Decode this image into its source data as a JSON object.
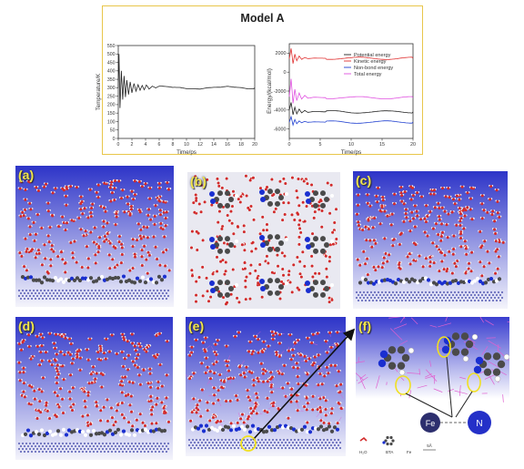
{
  "figure": {
    "title": "Model A",
    "panel_labels": [
      "(a)",
      "(b)",
      "(c)",
      "(d)",
      "(e)",
      "(f)"
    ],
    "legend_items": {
      "h2o": "H₂O",
      "bta": "BTA",
      "fe": "Fe",
      "scale": "5Å"
    },
    "atoms": {
      "fe": "Fe",
      "n": "N"
    },
    "colors": {
      "frame": "#e8c64a",
      "panel_bg_top": "#2d34c8",
      "panel_bg_bottom": "#f4f4fb",
      "water_o": "#d22a2a",
      "water_h": "#f3f3f3",
      "carbon": "#4a4a4a",
      "nitrogen": "#1a2fd0",
      "fe_atom": "#6a6fbd",
      "hbond": "#e060d0",
      "highlight": "#f0e020"
    }
  },
  "chart_data": [
    {
      "type": "line",
      "title": "",
      "xlabel": "Time/ps",
      "ylabel": "Temperature/K",
      "xlim": [
        0,
        20
      ],
      "ylim": [
        0,
        550
      ],
      "xticks": [
        0,
        2,
        4,
        6,
        8,
        10,
        12,
        14,
        16,
        18,
        20
      ],
      "yticks": [
        0,
        50,
        100,
        150,
        200,
        250,
        300,
        350,
        400,
        450,
        500,
        550
      ],
      "series": [
        {
          "color": "#222222",
          "x": [
            0,
            0.1,
            0.25,
            0.45,
            0.65,
            0.85,
            1.05,
            1.25,
            1.5,
            1.75,
            2.0,
            2.3,
            2.6,
            2.9,
            3.2,
            3.5,
            3.8,
            4.1,
            4.5,
            5.0,
            5.5,
            6.0,
            7,
            8,
            9,
            10,
            11,
            12,
            13,
            14,
            15,
            16,
            17,
            18,
            19,
            20
          ],
          "y": [
            300,
            500,
            180,
            400,
            230,
            370,
            245,
            345,
            260,
            335,
            270,
            325,
            280,
            318,
            285,
            314,
            288,
            311,
            292,
            307,
            295,
            304,
            301,
            298,
            302,
            299,
            301,
            298,
            302,
            300,
            297,
            302,
            299,
            301,
            298,
            300
          ]
        }
      ]
    },
    {
      "type": "line",
      "title": "",
      "xlabel": "Time/ps",
      "ylabel": "Energy/(kcal/mol)",
      "xlim": [
        0,
        20
      ],
      "ylim": [
        -7000,
        3000
      ],
      "xticks": [
        0,
        5,
        10,
        15,
        20
      ],
      "yticks": [
        -6000,
        -4000,
        -2000,
        0,
        2000
      ],
      "legend_position": "center-right",
      "series": [
        {
          "name": "Potential energy",
          "color": "#222222",
          "x": [
            0,
            0.3,
            0.6,
            0.9,
            1.2,
            1.6,
            2.0,
            2.5,
            3.0,
            4,
            6,
            8,
            10,
            12,
            14,
            16,
            18,
            20
          ],
          "y": [
            -4000,
            -3200,
            -4500,
            -3700,
            -4400,
            -3900,
            -4300,
            -4050,
            -4250,
            -4150,
            -4200,
            -4180,
            -4220,
            -4190,
            -4200,
            -4210,
            -4190,
            -4200
          ]
        },
        {
          "name": "Kinetic energy",
          "color": "#e03030",
          "x": [
            0,
            0.3,
            0.6,
            0.9,
            1.2,
            1.6,
            2.0,
            2.5,
            3.0,
            4,
            6,
            8,
            10,
            12,
            14,
            16,
            18,
            20
          ],
          "y": [
            1400,
            2500,
            900,
            1900,
            1200,
            1700,
            1350,
            1550,
            1420,
            1480,
            1460,
            1470,
            1450,
            1470,
            1460,
            1450,
            1470,
            1460
          ]
        },
        {
          "name": "Non-bond energy",
          "color": "#2040d0",
          "x": [
            0,
            0.3,
            0.6,
            0.9,
            1.2,
            1.6,
            2.0,
            2.5,
            3.0,
            4,
            6,
            8,
            10,
            12,
            14,
            16,
            18,
            20
          ],
          "y": [
            -5300,
            -4700,
            -5600,
            -5000,
            -5450,
            -5150,
            -5350,
            -5200,
            -5300,
            -5250,
            -5280,
            -5260,
            -5290,
            -5270,
            -5280,
            -5260,
            -5280,
            -5270
          ]
        },
        {
          "name": "Total energy",
          "color": "#e050e0",
          "x": [
            0,
            0.3,
            0.6,
            0.9,
            1.2,
            1.6,
            2.0,
            2.5,
            3.0,
            4,
            6,
            8,
            10,
            12,
            14,
            16,
            18,
            20
          ],
          "y": [
            -2600,
            -700,
            -3300,
            -1800,
            -3000,
            -2200,
            -2850,
            -2450,
            -2750,
            -2650,
            -2700,
            -2680,
            -2720,
            -2690,
            -2700,
            -2710,
            -2690,
            -2700
          ]
        }
      ]
    }
  ]
}
